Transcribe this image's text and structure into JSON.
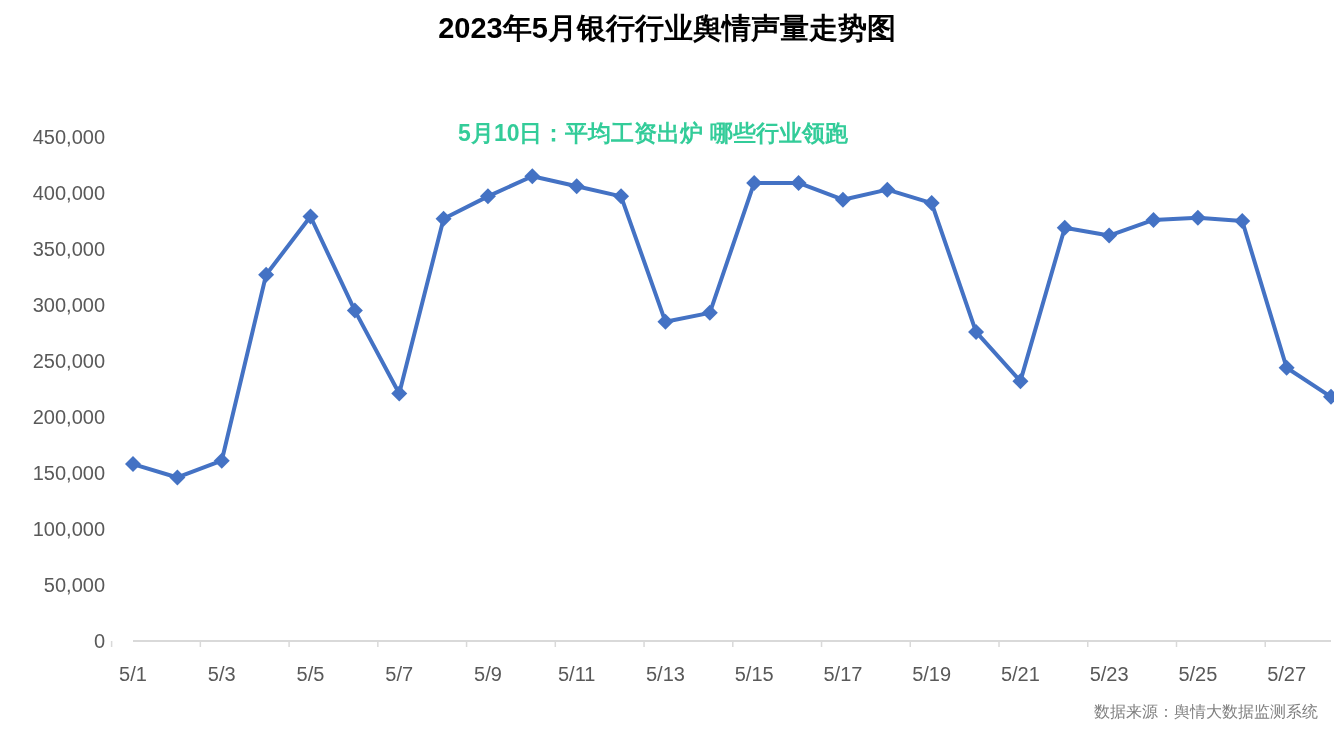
{
  "chart_data": {
    "type": "line",
    "title": "2023年5月银行行业舆情声量走势图",
    "annotations": [
      "5月10日：平均工资出炉 哪些行业领跑",
      "数据来源：舆情大数据监测系统"
    ],
    "categories": [
      "5/1",
      null,
      "5/3",
      null,
      "5/5",
      null,
      "5/7",
      null,
      "5/9",
      null,
      "5/11",
      null,
      "5/13",
      null,
      "5/15",
      null,
      "5/17",
      null,
      "5/19",
      null,
      "5/21",
      null,
      "5/23",
      null,
      "5/25",
      null,
      "5/27",
      null
    ],
    "series": [
      {
        "color": "#4472c4",
        "values": [
          158000,
          146000,
          161000,
          327000,
          379000,
          295000,
          221000,
          377000,
          397000,
          415000,
          406000,
          397000,
          285000,
          293000,
          409000,
          409000,
          394000,
          403000,
          391000,
          276000,
          232000,
          369000,
          362000,
          376000,
          378000,
          375000,
          244000,
          218000
        ]
      }
    ],
    "ylim": [
      0,
      450000
    ],
    "yticks": [
      0,
      {
        "value": 50000,
        "label": "50,000"
      },
      {
        "value": 100000,
        "label": "100,000"
      },
      {
        "value": 150000,
        "label": "150,000"
      },
      {
        "value": 200000,
        "label": "200,000"
      },
      {
        "value": 250000,
        "label": "250,000"
      },
      {
        "value": 300000,
        "label": "300,000"
      },
      {
        "value": 350000,
        "label": "350,000"
      },
      {
        "value": 400000,
        "label": "400,000"
      },
      {
        "value": 450000,
        "label": "450,000"
      }
    ],
    "marker": "diamond",
    "line_style": "solid"
  }
}
